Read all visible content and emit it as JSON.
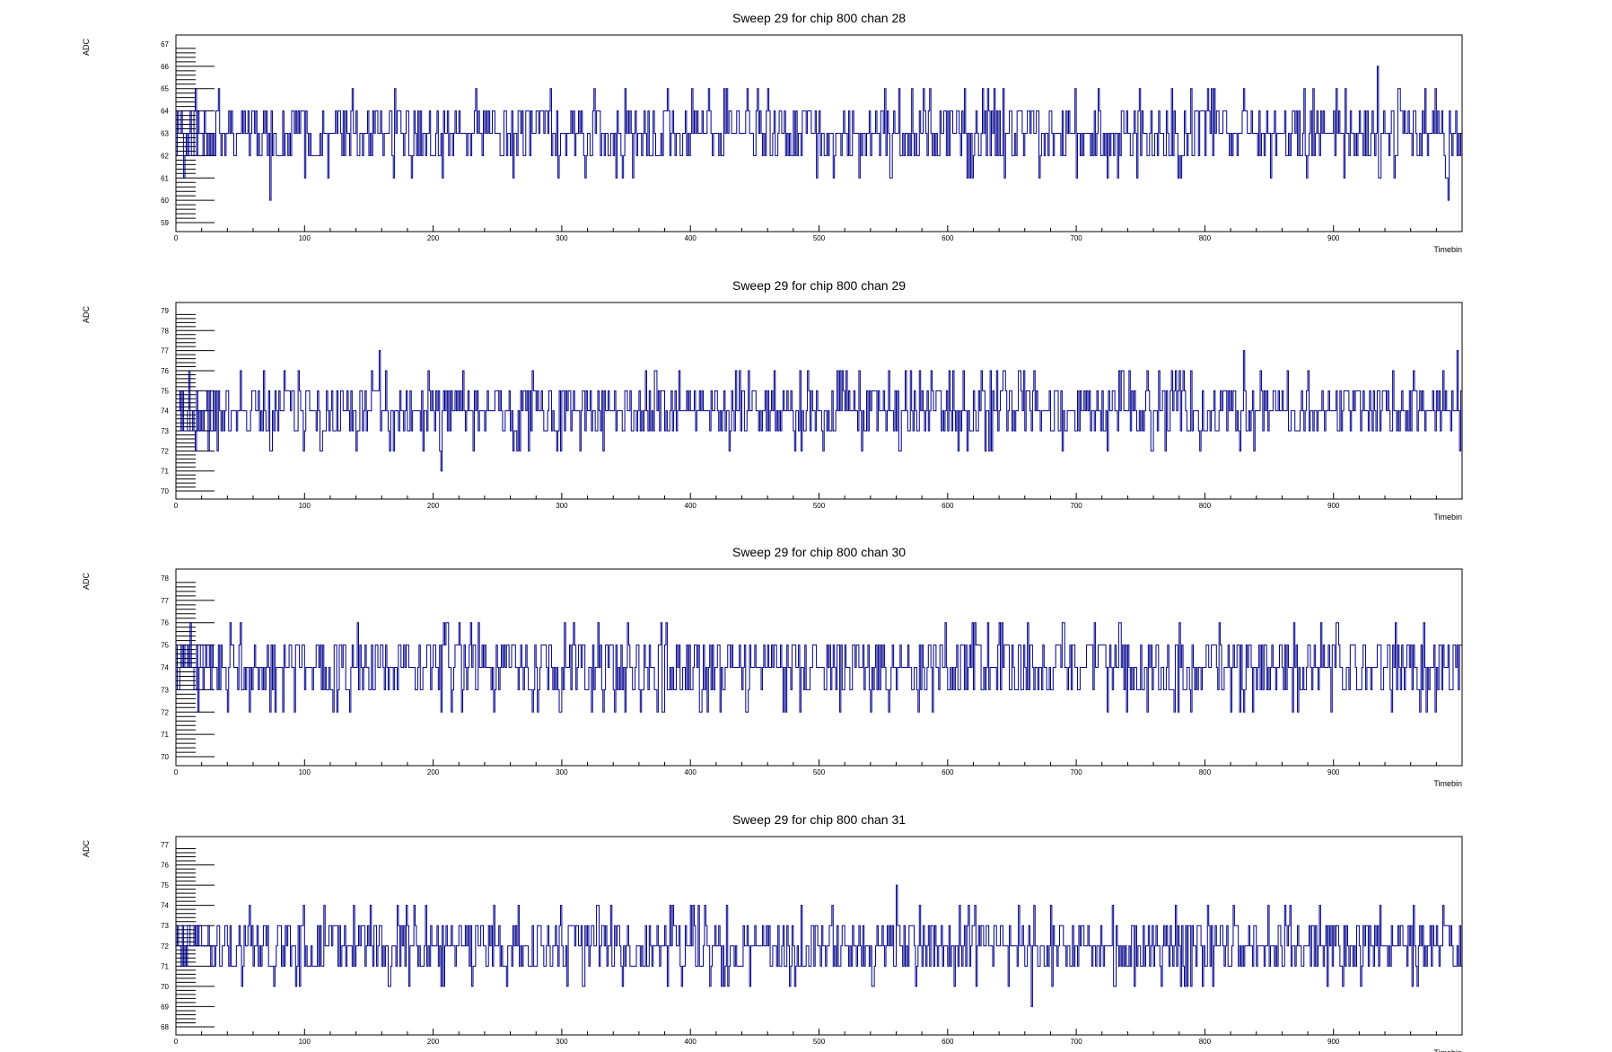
{
  "chart_data": [
    {
      "type": "line",
      "style": "step",
      "title": "Sweep 29 for chip 800 chan 28",
      "xlabel": "Timebin",
      "ylabel": "ADC",
      "xlim": [
        0,
        1000
      ],
      "ylim": [
        58.6,
        67.4
      ],
      "x_ticks": [
        0,
        100,
        200,
        300,
        400,
        500,
        600,
        700,
        800,
        900
      ],
      "y_ticks": [
        59,
        60,
        61,
        62,
        63,
        64,
        65,
        66,
        67
      ],
      "baseline": 63,
      "noise_range": [
        59,
        67
      ],
      "n_bins": 1000,
      "series": [
        {
          "name": "",
          "color": "#00008b"
        }
      ]
    },
    {
      "type": "line",
      "style": "step",
      "title": "Sweep 29 for chip 800 chan 29",
      "xlabel": "Timebin",
      "ylabel": "ADC",
      "xlim": [
        0,
        1000
      ],
      "ylim": [
        69.6,
        79.4
      ],
      "x_ticks": [
        0,
        100,
        200,
        300,
        400,
        500,
        600,
        700,
        800,
        900
      ],
      "y_ticks": [
        70,
        71,
        72,
        73,
        74,
        75,
        76,
        77,
        78,
        79
      ],
      "baseline": 74,
      "noise_range": [
        70,
        79
      ],
      "n_bins": 1000,
      "series": [
        {
          "name": "",
          "color": "#00008b"
        }
      ]
    },
    {
      "type": "line",
      "style": "step",
      "title": "Sweep 29 for chip 800 chan 30",
      "xlabel": "Timebin",
      "ylabel": "ADC",
      "xlim": [
        0,
        1000
      ],
      "ylim": [
        69.6,
        78.4
      ],
      "x_ticks": [
        0,
        100,
        200,
        300,
        400,
        500,
        600,
        700,
        800,
        900
      ],
      "y_ticks": [
        70,
        71,
        72,
        73,
        74,
        75,
        76,
        77,
        78
      ],
      "baseline": 74,
      "noise_range": [
        70,
        78
      ],
      "n_bins": 1000,
      "series": [
        {
          "name": "",
          "color": "#00008b"
        }
      ]
    },
    {
      "type": "line",
      "style": "step",
      "title": "Sweep 29 for chip 800 chan 31",
      "xlabel": "Timebin",
      "ylabel": "ADC",
      "xlim": [
        0,
        1000
      ],
      "ylim": [
        67.6,
        77.4
      ],
      "x_ticks": [
        0,
        100,
        200,
        300,
        400,
        500,
        600,
        700,
        800,
        900
      ],
      "y_ticks": [
        68,
        69,
        70,
        71,
        72,
        73,
        74,
        75,
        76,
        77
      ],
      "baseline": 72,
      "noise_range": [
        68,
        77
      ],
      "n_bins": 1000,
      "series": [
        {
          "name": "",
          "color": "#00008b"
        }
      ]
    }
  ]
}
